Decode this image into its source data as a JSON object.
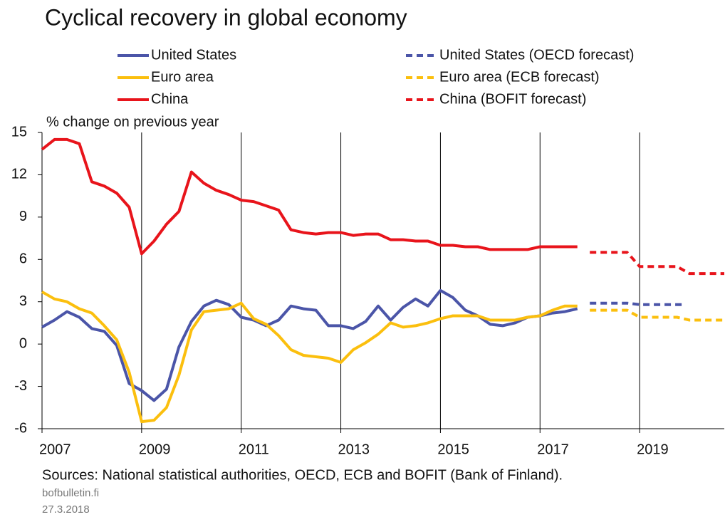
{
  "chart_data": {
    "type": "line",
    "title": "Cyclical recovery in global economy",
    "y_label": "% change on previous year",
    "source": "Sources: National statistical authorities, OECD, ECB and BOFIT (Bank of Finland).",
    "site": "bofbulletin.fi",
    "date": "27.3.2018",
    "xlim": [
      2007,
      2020.7
    ],
    "xticks": [
      2007,
      2009,
      2011,
      2013,
      2015,
      2017,
      2019
    ],
    "ylim": [
      -6,
      15
    ],
    "yticks": [
      -6,
      -3,
      0,
      3,
      6,
      9,
      12,
      15
    ],
    "grid": true,
    "series": [
      {
        "name": "United States",
        "color": "#4b55a8",
        "dashed": false,
        "x": [
          2007,
          2007.25,
          2007.5,
          2007.75,
          2008,
          2008.25,
          2008.5,
          2008.75,
          2009,
          2009.25,
          2009.5,
          2009.75,
          2010,
          2010.25,
          2010.5,
          2010.75,
          2011,
          2011.25,
          2011.5,
          2011.75,
          2012,
          2012.25,
          2012.5,
          2012.75,
          2013,
          2013.25,
          2013.5,
          2013.75,
          2014,
          2014.25,
          2014.5,
          2014.75,
          2015,
          2015.25,
          2015.5,
          2015.75,
          2016,
          2016.25,
          2016.5,
          2016.75,
          2017,
          2017.25,
          2017.5,
          2017.75
        ],
        "values": [
          1.2,
          1.7,
          2.3,
          1.9,
          1.1,
          0.9,
          -0.1,
          -2.8,
          -3.3,
          -4.0,
          -3.2,
          -0.2,
          1.6,
          2.7,
          3.1,
          2.8,
          1.9,
          1.7,
          1.3,
          1.7,
          2.7,
          2.5,
          2.4,
          1.3,
          1.3,
          1.1,
          1.6,
          2.7,
          1.7,
          2.6,
          3.2,
          2.7,
          3.8,
          3.3,
          2.4,
          2.0,
          1.4,
          1.3,
          1.5,
          1.9,
          2.0,
          2.2,
          2.3,
          2.5
        ]
      },
      {
        "name": "Euro area",
        "color": "#fbbf0e",
        "dashed": false,
        "x": [
          2007,
          2007.25,
          2007.5,
          2007.75,
          2008,
          2008.25,
          2008.5,
          2008.75,
          2009,
          2009.25,
          2009.5,
          2009.75,
          2010,
          2010.25,
          2010.5,
          2010.75,
          2011,
          2011.25,
          2011.5,
          2011.75,
          2012,
          2012.25,
          2012.5,
          2012.75,
          2013,
          2013.25,
          2013.5,
          2013.75,
          2014,
          2014.25,
          2014.5,
          2014.75,
          2015,
          2015.25,
          2015.5,
          2015.75,
          2016,
          2016.25,
          2016.5,
          2016.75,
          2017,
          2017.25,
          2017.5,
          2017.75
        ],
        "values": [
          3.7,
          3.2,
          3.0,
          2.5,
          2.2,
          1.3,
          0.3,
          -2.0,
          -5.5,
          -5.4,
          -4.5,
          -2.2,
          1.0,
          2.3,
          2.4,
          2.5,
          2.9,
          1.8,
          1.4,
          0.6,
          -0.4,
          -0.8,
          -0.9,
          -1.0,
          -1.3,
          -0.4,
          0.1,
          0.7,
          1.5,
          1.2,
          1.3,
          1.5,
          1.8,
          2.0,
          2.0,
          2.0,
          1.7,
          1.7,
          1.7,
          1.9,
          2.0,
          2.4,
          2.7,
          2.7
        ]
      },
      {
        "name": "China",
        "color": "#e8141b",
        "dashed": false,
        "x": [
          2007,
          2007.25,
          2007.5,
          2007.75,
          2008,
          2008.25,
          2008.5,
          2008.75,
          2009,
          2009.25,
          2009.5,
          2009.75,
          2010,
          2010.25,
          2010.5,
          2010.75,
          2011,
          2011.25,
          2011.5,
          2011.75,
          2012,
          2012.25,
          2012.5,
          2012.75,
          2013,
          2013.25,
          2013.5,
          2013.75,
          2014,
          2014.25,
          2014.5,
          2014.75,
          2015,
          2015.25,
          2015.5,
          2015.75,
          2016,
          2016.25,
          2016.5,
          2016.75,
          2017,
          2017.25,
          2017.5,
          2017.75
        ],
        "values": [
          13.8,
          14.5,
          14.5,
          14.2,
          11.5,
          11.2,
          10.7,
          9.7,
          6.4,
          7.3,
          8.5,
          9.4,
          12.2,
          11.4,
          10.9,
          10.6,
          10.2,
          10.1,
          9.8,
          9.5,
          8.1,
          7.9,
          7.8,
          7.9,
          7.9,
          7.7,
          7.8,
          7.8,
          7.4,
          7.4,
          7.3,
          7.3,
          7.0,
          7.0,
          6.9,
          6.9,
          6.7,
          6.7,
          6.7,
          6.7,
          6.9,
          6.9,
          6.9,
          6.9
        ]
      },
      {
        "name": "United States (OECD forecast)",
        "color": "#4b55a8",
        "dashed": true,
        "x": [
          2018,
          2018.75,
          2019,
          2019.85
        ],
        "values": [
          2.9,
          2.9,
          2.8,
          2.8
        ]
      },
      {
        "name": "Euro area (ECB forecast)",
        "color": "#fbbf0e",
        "dashed": true,
        "x": [
          2018,
          2018.75,
          2019,
          2019.75,
          2020,
          2020.7
        ],
        "values": [
          2.4,
          2.4,
          1.9,
          1.9,
          1.7,
          1.7
        ]
      },
      {
        "name": "China (BOFIT forecast)",
        "color": "#e8141b",
        "dashed": true,
        "x": [
          2018,
          2018.75,
          2019,
          2019.75,
          2020,
          2020.7
        ],
        "values": [
          6.5,
          6.5,
          5.5,
          5.5,
          5.0,
          5.0
        ]
      }
    ]
  }
}
